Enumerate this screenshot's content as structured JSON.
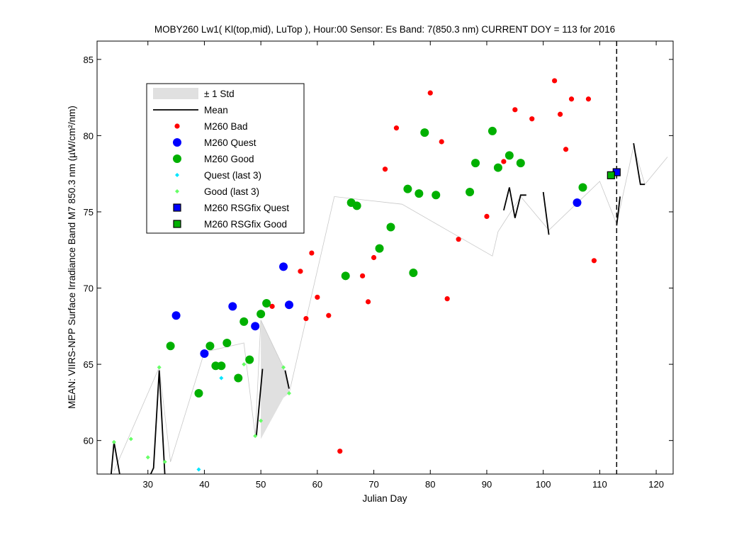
{
  "chart_data": {
    "type": "scatter",
    "title": "MOBY260   Lw1( Kl(top,mid), LuTop ),   Hour:00 Sensor: Es Band: 7(850.3 nm)   CURRENT DOY = 113 for 2016",
    "xlabel": "Julian Day",
    "ylabel": "MEAN: VIIRS-NPP Surface Irradiance Band M7 850.3 nm (µW/cm²/nm)",
    "xlim": [
      21,
      123
    ],
    "ylim": [
      57.8,
      86.2
    ],
    "x_ticks": [
      30,
      40,
      50,
      60,
      70,
      80,
      90,
      100,
      110,
      120
    ],
    "y_ticks": [
      60,
      65,
      70,
      75,
      80,
      85
    ],
    "current_doy": 113,
    "grid": false,
    "legend_position": "upper-left",
    "legend": [
      {
        "label": "± 1 Std",
        "kind": "patch",
        "color": "#e0e0e0"
      },
      {
        "label": "Mean",
        "kind": "line",
        "color": "#000000"
      },
      {
        "label": "M260 Bad",
        "kind": "dot",
        "color": "#ff0000"
      },
      {
        "label": "M260 Quest",
        "kind": "circle",
        "color": "#0000ff"
      },
      {
        "label": "M260 Good",
        "kind": "circle",
        "color": "#00b000"
      },
      {
        "label": "Quest (last 3)",
        "kind": "diamond",
        "color": "#00e5ff"
      },
      {
        "label": "Good (last 3)",
        "kind": "diamond",
        "color": "#66ff66"
      },
      {
        "label": "M260 RSGfix Quest",
        "kind": "square",
        "color": "#0000ff"
      },
      {
        "label": "M260 RSGfix Good",
        "kind": "square",
        "color": "#00b000"
      }
    ],
    "thin_line": [
      [
        24,
        58.0
      ],
      [
        32,
        64.8
      ],
      [
        34,
        58.6
      ],
      [
        40,
        65.8
      ],
      [
        47,
        66.4
      ],
      [
        49,
        60.3
      ],
      [
        50,
        67.9
      ],
      [
        54,
        64.8
      ],
      [
        55,
        63.1
      ],
      [
        63,
        76.0
      ],
      [
        75,
        75.5
      ],
      [
        91,
        72.1
      ],
      [
        92,
        73.7
      ],
      [
        96,
        76.0
      ],
      [
        101,
        73.8
      ],
      [
        110,
        77.0
      ],
      [
        113,
        74.2
      ],
      [
        116,
        79.3
      ],
      [
        118,
        76.8
      ],
      [
        122,
        78.6
      ]
    ],
    "std_band": [
      [
        50,
        67.9
      ],
      [
        54,
        64.8
      ],
      [
        55,
        63.1
      ],
      [
        54,
        62.8
      ],
      [
        50,
        60.1
      ]
    ],
    "mean_segments": [
      [
        [
          23.5,
          57.8
        ],
        [
          24,
          59.9
        ],
        [
          25,
          57.8
        ]
      ],
      [
        [
          30.5,
          57.8
        ],
        [
          31,
          58.2
        ],
        [
          32,
          64.6
        ],
        [
          33,
          57.8
        ]
      ],
      [
        [
          49.2,
          60.3
        ],
        [
          50.3,
          64.7
        ]
      ],
      [
        [
          54.3,
          64.6
        ],
        [
          55,
          63.4
        ]
      ],
      [
        [
          93,
          75.1
        ],
        [
          94,
          76.6
        ],
        [
          95,
          74.6
        ],
        [
          96,
          76.1
        ],
        [
          97,
          76.1
        ]
      ],
      [
        [
          100,
          76.3
        ],
        [
          101,
          73.5
        ]
      ],
      [
        [
          113,
          74.1
        ],
        [
          113.6,
          76.0
        ]
      ],
      [
        [
          116,
          79.5
        ],
        [
          117.2,
          76.8
        ],
        [
          118,
          76.8
        ]
      ]
    ],
    "series": [
      {
        "name": "M260 Bad",
        "marker": "dot",
        "color": "#ff0000",
        "points": [
          [
            52,
            68.8
          ],
          [
            57,
            71.1
          ],
          [
            58,
            68.0
          ],
          [
            59,
            72.3
          ],
          [
            60,
            69.4
          ],
          [
            62,
            68.2
          ],
          [
            64,
            59.3
          ],
          [
            68,
            70.8
          ],
          [
            69,
            69.1
          ],
          [
            70,
            72.0
          ],
          [
            72,
            77.8
          ],
          [
            74,
            80.5
          ],
          [
            80,
            82.8
          ],
          [
            82,
            79.6
          ],
          [
            83,
            69.3
          ],
          [
            85,
            73.2
          ],
          [
            90,
            74.7
          ],
          [
            93,
            78.3
          ],
          [
            95,
            81.7
          ],
          [
            98,
            81.1
          ],
          [
            102,
            83.6
          ],
          [
            103,
            81.4
          ],
          [
            104,
            79.1
          ],
          [
            105,
            82.4
          ],
          [
            108,
            82.4
          ],
          [
            109,
            71.8
          ]
        ]
      },
      {
        "name": "M260 Quest",
        "marker": "circle",
        "color": "#0000ff",
        "points": [
          [
            35,
            68.2
          ],
          [
            40,
            65.7
          ],
          [
            45,
            68.8
          ],
          [
            49,
            67.5
          ],
          [
            54,
            71.4
          ],
          [
            55,
            68.9
          ],
          [
            106,
            75.6
          ]
        ]
      },
      {
        "name": "M260 Good",
        "marker": "circle",
        "color": "#00b000",
        "points": [
          [
            34,
            66.2
          ],
          [
            39,
            63.1
          ],
          [
            41,
            66.2
          ],
          [
            42,
            64.9
          ],
          [
            43,
            64.9
          ],
          [
            44,
            66.4
          ],
          [
            46,
            64.1
          ],
          [
            47,
            67.8
          ],
          [
            48,
            65.3
          ],
          [
            50,
            68.3
          ],
          [
            51,
            69.0
          ],
          [
            65,
            70.8
          ],
          [
            66,
            75.6
          ],
          [
            67,
            75.4
          ],
          [
            71,
            72.6
          ],
          [
            73,
            74.0
          ],
          [
            76,
            76.5
          ],
          [
            77,
            71.0
          ],
          [
            78,
            76.2
          ],
          [
            79,
            80.2
          ],
          [
            81,
            76.1
          ],
          [
            87,
            76.3
          ],
          [
            88,
            78.2
          ],
          [
            91,
            80.3
          ],
          [
            92,
            77.9
          ],
          [
            94,
            78.7
          ],
          [
            96,
            78.2
          ],
          [
            107,
            76.6
          ]
        ]
      },
      {
        "name": "Quest (last 3)",
        "marker": "diamond",
        "color": "#00e5ff",
        "points": [
          [
            39,
            58.1
          ],
          [
            43,
            64.1
          ]
        ]
      },
      {
        "name": "Good (last 3)",
        "marker": "diamond",
        "color": "#66ff66",
        "points": [
          [
            24,
            59.9
          ],
          [
            27,
            60.1
          ],
          [
            30,
            58.9
          ],
          [
            32,
            64.8
          ],
          [
            33,
            58.6
          ],
          [
            47,
            65.0
          ],
          [
            49,
            60.3
          ],
          [
            50,
            61.3
          ],
          [
            54,
            64.8
          ],
          [
            55,
            63.1
          ]
        ]
      },
      {
        "name": "M260 RSGfix Quest",
        "marker": "square",
        "color": "#0000ff",
        "points": [
          [
            113,
            77.6
          ]
        ]
      },
      {
        "name": "M260 RSGfix Good",
        "marker": "square",
        "color": "#00b000",
        "points": [
          [
            112,
            77.4
          ]
        ]
      }
    ]
  }
}
